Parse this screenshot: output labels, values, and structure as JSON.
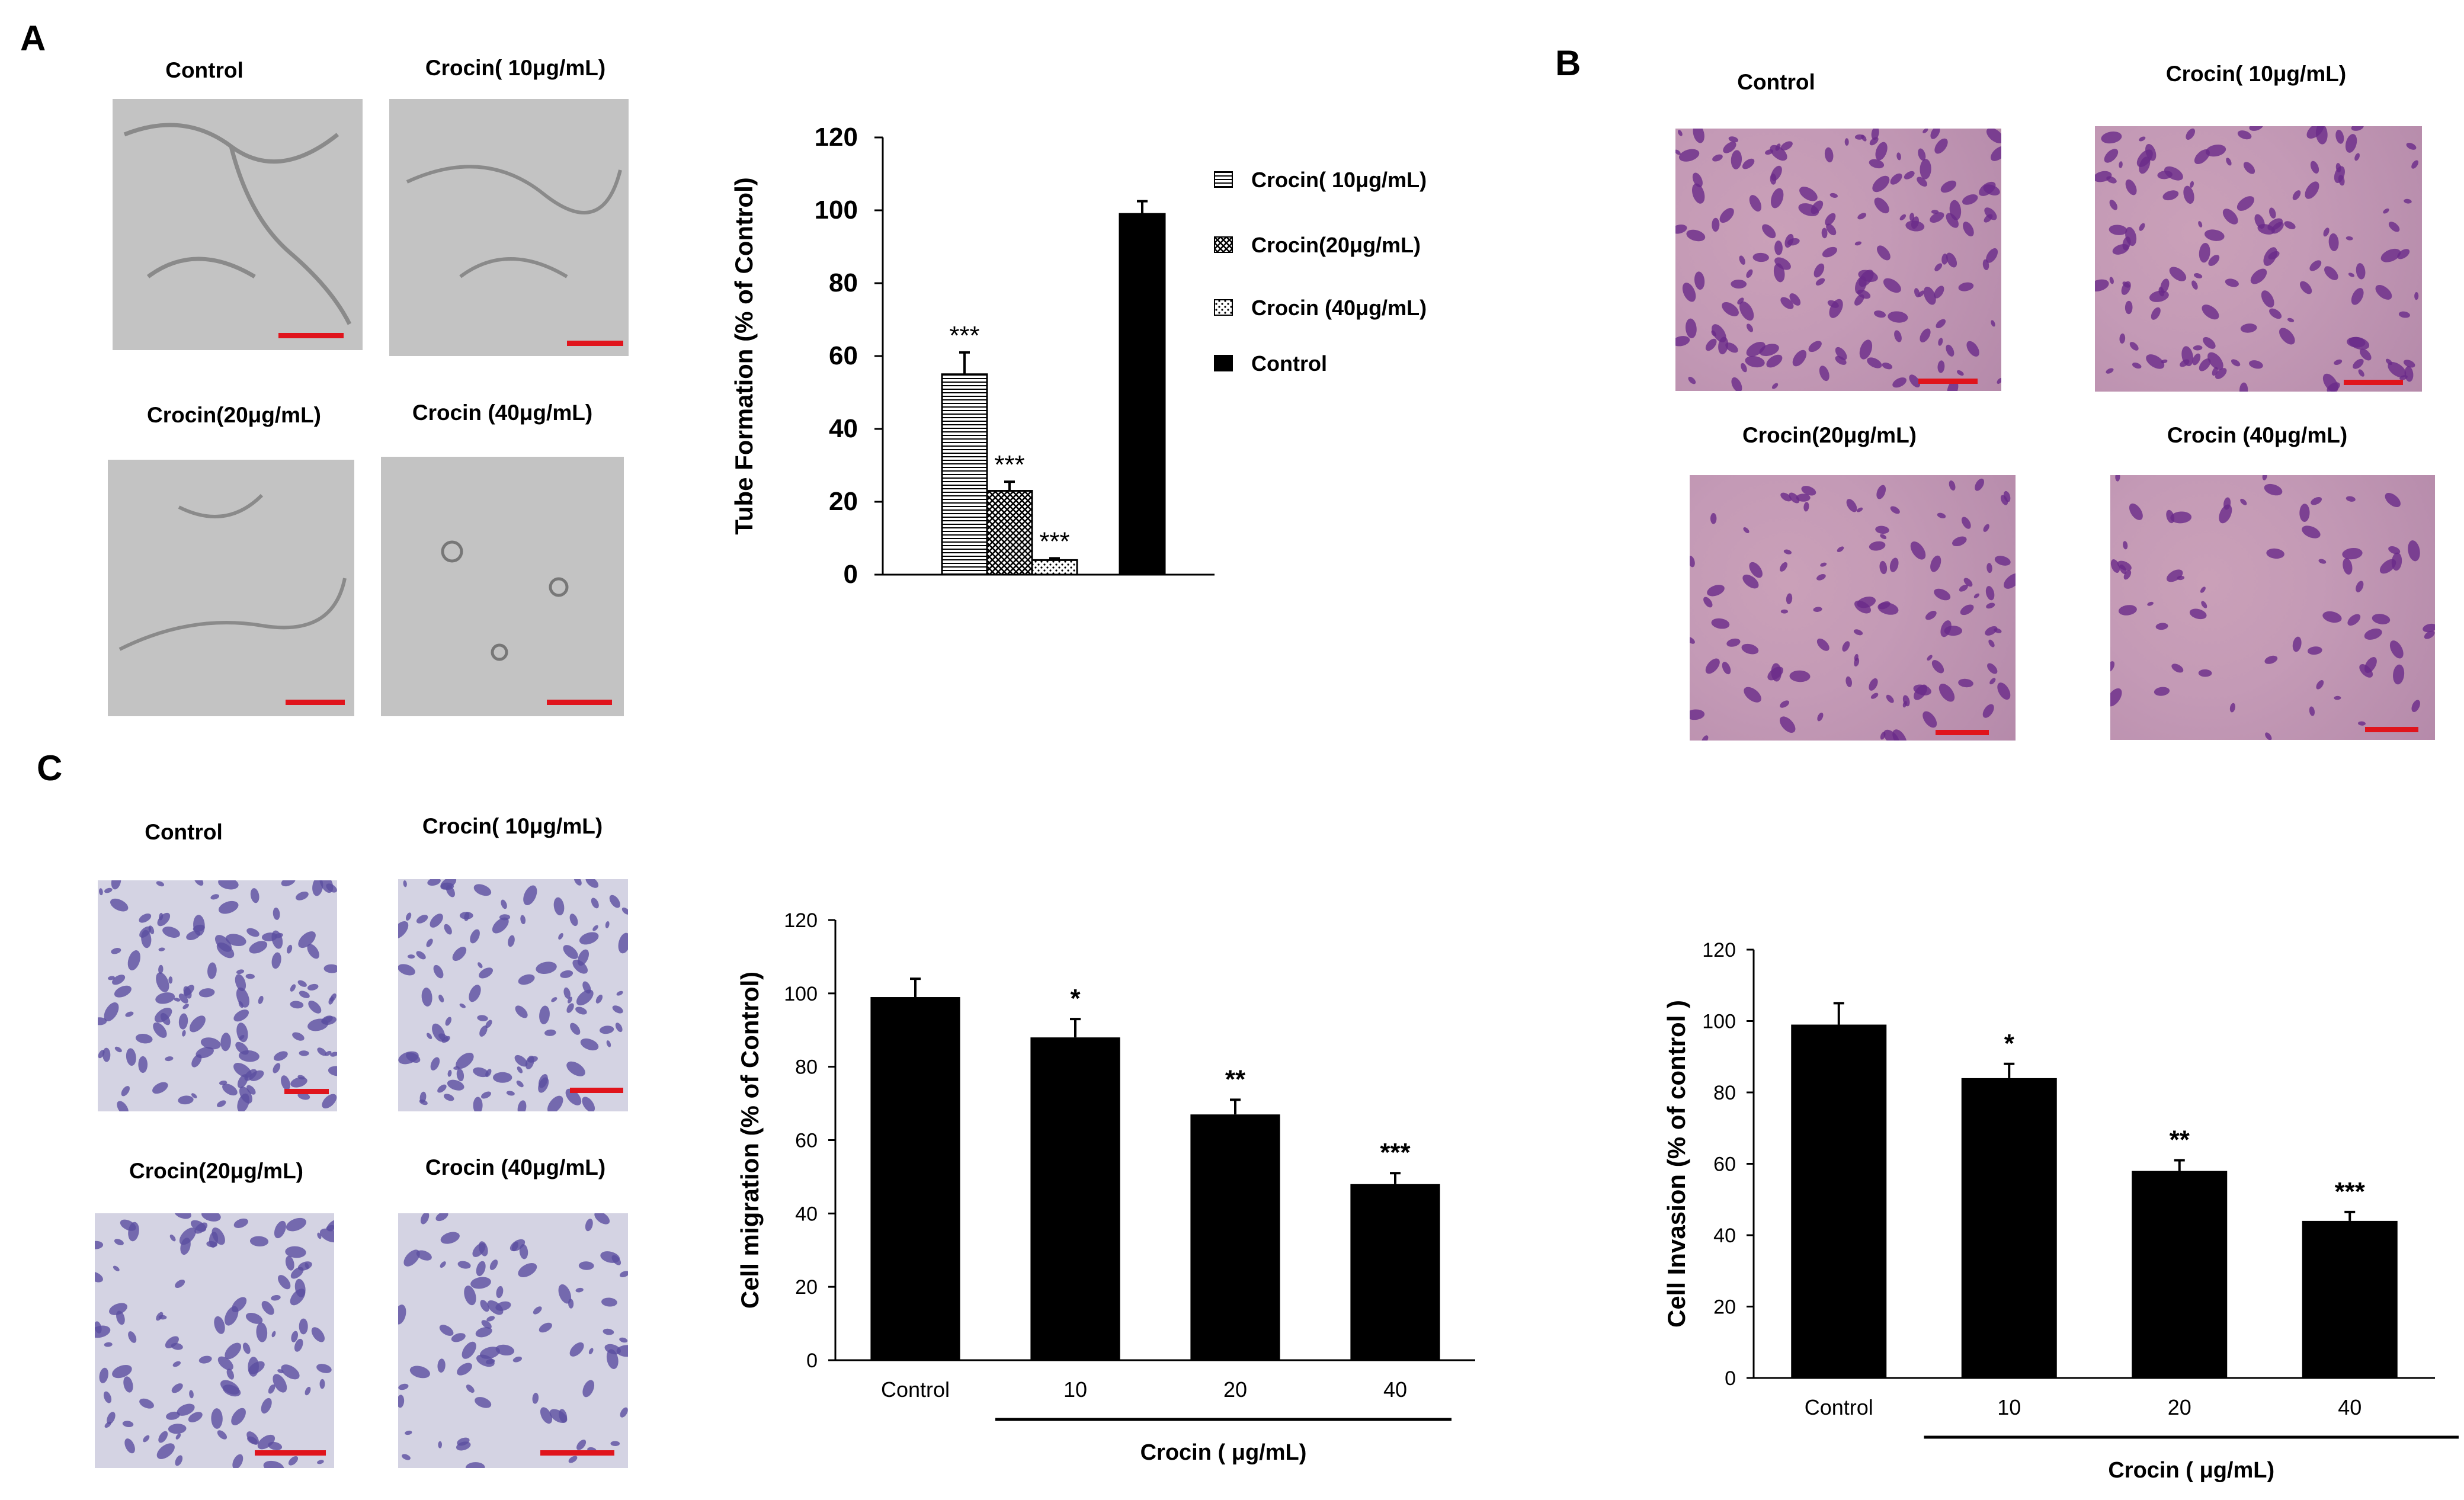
{
  "panels": {
    "a": "A",
    "b": "B",
    "c": "C"
  },
  "micrographs": {
    "a": [
      "Control",
      "Crocin( 10μg/mL)",
      "Crocin(20μg/mL)",
      "Crocin (40μg/mL)"
    ],
    "b": [
      "Control",
      "Crocin( 10μg/mL)",
      "Crocin(20μg/mL)",
      "Crocin (40μg/mL)"
    ],
    "c": [
      "Control",
      "Crocin( 10μg/mL)",
      "Crocin(20μg/mL)",
      "Crocin (40μg/mL)"
    ]
  },
  "colors": {
    "bar": "#000000",
    "scale_bar": "#e0141c",
    "stain_b": "#6a2a8a",
    "stain_c": "#5b4fa0"
  },
  "chart_data": [
    {
      "type": "bar",
      "panel": "A",
      "ylabel": "Tube Formation (% of Control)",
      "ylim": [
        0,
        120
      ],
      "yticks": [
        "0",
        "20",
        "40",
        "60",
        "80",
        "100",
        "120"
      ],
      "series": [
        {
          "name": "Crocin( 10μg/mL)",
          "value": 55,
          "error": 6,
          "significance": "***",
          "pattern": "horizontal-lines"
        },
        {
          "name": "Crocin(20μg/mL)",
          "value": 23,
          "error": 2.5,
          "significance": "***",
          "pattern": "crosshatch"
        },
        {
          "name": "Crocin (40μg/mL)",
          "value": 4,
          "error": 0.5,
          "significance": "***",
          "pattern": "dots"
        },
        {
          "name": "Control",
          "value": 99,
          "error": 3.5,
          "significance": "",
          "pattern": "solid"
        }
      ],
      "legend": "right"
    },
    {
      "type": "bar",
      "panel": "C",
      "ylabel": "Cell migration (% of Control)",
      "ylim": [
        0,
        120
      ],
      "yticks": [
        "0",
        "20",
        "40",
        "60",
        "80",
        "100",
        "120"
      ],
      "categories": [
        "Control",
        "10",
        "20",
        "40"
      ],
      "values": [
        99,
        88,
        67,
        48
      ],
      "errors": [
        5,
        5,
        4,
        3
      ],
      "significance": [
        "",
        "*",
        "**",
        "***"
      ],
      "group_label": "Crocin ( μg/mL)"
    },
    {
      "type": "bar",
      "panel": "B",
      "ylabel": "Cell Invasion (% of control )",
      "ylim": [
        0,
        120
      ],
      "yticks": [
        "0",
        "20",
        "40",
        "60",
        "80",
        "100",
        "120"
      ],
      "categories": [
        "Control",
        "10",
        "20",
        "40"
      ],
      "values": [
        99,
        84,
        58,
        44
      ],
      "errors": [
        6,
        4,
        3,
        2.5
      ],
      "significance": [
        "",
        "*",
        "**",
        "***"
      ],
      "group_label": "Crocin ( μg/mL)"
    }
  ]
}
